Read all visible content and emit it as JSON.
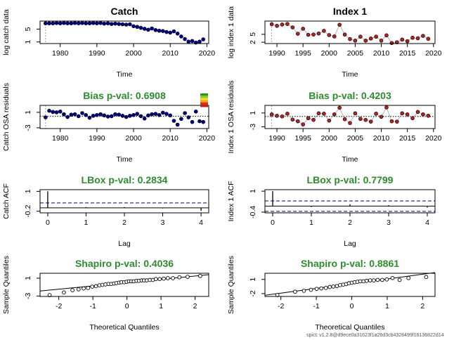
{
  "colors": {
    "catch_point": "#00008B",
    "index_point": "#B22222",
    "green_title": "#2E8B2E",
    "connect_line": "#b0b0b0",
    "ci_dash": "#00008B"
  },
  "footer": "spict: v1.2.8@d9ece0a31623f1a26d3cb4328499f16136822d14",
  "chart_data": [
    {
      "id": "catch_data",
      "type": "scatter",
      "title": "Catch",
      "title_color": "#000000",
      "xlabel": "Time",
      "ylabel": "log catch data",
      "xlim": [
        1974.5,
        2020.5
      ],
      "ylim": [
        0.5,
        7.5
      ],
      "xticks": [
        1980,
        1990,
        2000,
        2010,
        2020
      ],
      "yticks": [
        1,
        5
      ],
      "vline": 1976,
      "connect": false,
      "point_color": "#00008B",
      "x": [
        1976,
        1977,
        1978,
        1979,
        1980,
        1981,
        1982,
        1983,
        1984,
        1985,
        1986,
        1987,
        1988,
        1989,
        1990,
        1991,
        1992,
        1993,
        1994,
        1995,
        1996,
        1997,
        1998,
        1999,
        2000,
        2001,
        2002,
        2003,
        2004,
        2005,
        2006,
        2007,
        2008,
        2009,
        2010,
        2011,
        2012,
        2013,
        2014,
        2015,
        2016,
        2017,
        2018,
        2019
      ],
      "y": [
        6.8,
        6.8,
        6.8,
        6.9,
        6.8,
        6.9,
        6.8,
        6.8,
        6.9,
        6.8,
        6.9,
        6.8,
        6.8,
        6.9,
        6.8,
        6.9,
        6.7,
        6.8,
        6.6,
        6.7,
        6.6,
        6.5,
        6.4,
        6.5,
        5.9,
        5.7,
        5.4,
        5.1,
        4.8,
        5.2,
        4.7,
        4.5,
        4.4,
        4.1,
        3.9,
        4.3,
        3.6,
        2.7,
        1.9,
        1.1,
        1.3,
        0.8,
        1.1,
        1.8
      ]
    },
    {
      "id": "index_data",
      "type": "scatter",
      "title": "Index 1",
      "title_color": "#000000",
      "xlabel": "Time",
      "ylabel": "log index 1 data",
      "xlim": [
        1987.7,
        2020.3
      ],
      "ylim": [
        1.5,
        10
      ],
      "xticks": [
        1990,
        1995,
        2000,
        2005,
        2010,
        2015,
        2020
      ],
      "yticks": [
        2,
        5
      ],
      "vline": 1989,
      "connect": true,
      "point_color": "#B22222",
      "x": [
        1989,
        1990,
        1991,
        1992,
        1993,
        1994,
        1995,
        1996,
        1997,
        1998,
        1999,
        2000,
        2001,
        2002,
        2003,
        2004,
        2005,
        2006,
        2007,
        2008,
        2009,
        2010,
        2011,
        2012,
        2013,
        2014,
        2015,
        2016,
        2017,
        2018,
        2019
      ],
      "y": [
        8.8,
        8.2,
        8.7,
        8.9,
        7.6,
        5.2,
        7.1,
        4.8,
        4.9,
        5.3,
        6.3,
        4.7,
        4.2,
        8.6,
        4.9,
        3.2,
        2.6,
        4.1,
        2.6,
        3.4,
        4.1,
        2.6,
        4.6,
        1.7,
        2.0,
        3.0,
        2.4,
        3.7,
        3.5,
        4.4,
        3.3
      ]
    },
    {
      "id": "catch_osa",
      "type": "scatter",
      "title": "Bias p-val: 0.6908",
      "title_color": "#2E8B2E",
      "xlabel": "Time",
      "ylabel": "Catch OSA residuals",
      "xlim": [
        1974.5,
        2020.5
      ],
      "ylim": [
        -3.2,
        2.8
      ],
      "xticks": [
        1980,
        1990,
        2000,
        2010,
        2020
      ],
      "yticks": [
        -3,
        1
      ],
      "vline": 1976,
      "hline": 0,
      "connect": false,
      "point_color": "#00008B",
      "colorbar": true,
      "x": [
        1976,
        1977,
        1978,
        1979,
        1980,
        1981,
        1982,
        1983,
        1984,
        1985,
        1986,
        1987,
        1988,
        1989,
        1990,
        1991,
        1992,
        1993,
        1994,
        1995,
        1996,
        1997,
        1998,
        1999,
        2000,
        2001,
        2002,
        2003,
        2004,
        2005,
        2006,
        2007,
        2008,
        2009,
        2010,
        2011,
        2012,
        2013,
        2014,
        2015,
        2016,
        2017,
        2018,
        2019
      ],
      "y": [
        -0.3,
        1.4,
        1.1,
        1.0,
        1.2,
        0.5,
        -0.2,
        0.4,
        0.5,
        0.0,
        0.8,
        0.3,
        -0.4,
        0.1,
        0.3,
        0.5,
        0.2,
        -0.1,
        0.0,
        0.5,
        0.4,
        0.1,
        -0.2,
        0.1,
        0.3,
        0.6,
        0.0,
        -0.6,
        0.2,
        0.5,
        0.6,
        0.3,
        0.9,
        0.6,
        0.2,
        -1.2,
        -2.2,
        -0.7,
        0.8,
        -0.3,
        -1.5,
        1.2,
        -1.3,
        -1.5
      ]
    },
    {
      "id": "index_osa",
      "type": "scatter",
      "title": "Bias p-val: 0.4203",
      "title_color": "#2E8B2E",
      "xlabel": "Time",
      "ylabel": "Index 1 OSA residuals",
      "xlim": [
        1987.7,
        2020.3
      ],
      "ylim": [
        -3.5,
        3.2
      ],
      "xticks": [
        1990,
        1995,
        2000,
        2005,
        2010,
        2015,
        2020
      ],
      "yticks": [
        -3,
        1
      ],
      "vline": 1989,
      "hline": 0,
      "connect": true,
      "point_color": "#B22222",
      "x": [
        1989,
        1990,
        1991,
        1992,
        1993,
        1994,
        1995,
        1996,
        1997,
        1998,
        1999,
        2000,
        2001,
        2002,
        2003,
        2004,
        2005,
        2006,
        2007,
        2008,
        2009,
        2010,
        2011,
        2012,
        2013,
        2014,
        2015,
        2016,
        2017,
        2018,
        2019
      ],
      "y": [
        0.6,
        0.2,
        0.0,
        0.8,
        -0.9,
        -1.4,
        -2.3,
        -0.5,
        -1.0,
        0.9,
        0.8,
        -1.2,
        0.6,
        2.5,
        -0.8,
        -1.9,
        0.9,
        -0.7,
        -1.0,
        -1.5,
        0.8,
        -0.1,
        2.6,
        -1.4,
        -1.5,
        0.9,
        0.6,
        -0.5,
        1.3,
        0.6,
        0.2
      ]
    },
    {
      "id": "catch_acf",
      "type": "bar",
      "title": "LBox p-val: 0.2834",
      "title_color": "#2E8B2E",
      "xlabel": "Lag",
      "ylabel": "Catch ACF",
      "xlim": [
        -0.2,
        4.2
      ],
      "ylim": [
        -0.3,
        1.1
      ],
      "xticks": [
        0,
        1,
        2,
        3,
        4
      ],
      "yticks": [
        -0.2,
        1.0
      ],
      "x": [
        0,
        1,
        2,
        3,
        4
      ],
      "y": [
        1.0,
        0.05,
        0.05,
        -0.03,
        -0.18
      ],
      "ci": [
        0.3,
        -0.3
      ]
    },
    {
      "id": "index_acf",
      "type": "bar",
      "title": "LBox p-val: 0.7799",
      "title_color": "#2E8B2E",
      "xlabel": "Lag",
      "ylabel": "Index 1 ACF",
      "xlim": [
        -0.2,
        4.2
      ],
      "ylim": [
        -0.45,
        1.1
      ],
      "xticks": [
        0,
        1,
        2,
        3,
        4
      ],
      "yticks": [
        -0.4,
        1.0
      ],
      "x": [
        0,
        1,
        2,
        3,
        4
      ],
      "y": [
        1.0,
        -0.06,
        0.13,
        0.06,
        -0.1
      ],
      "ci": [
        0.35,
        -0.35
      ]
    },
    {
      "id": "catch_qq",
      "type": "scatter",
      "title": "Shapiro p-val: 0.4036",
      "title_color": "#2E8B2E",
      "xlabel": "Theoretical Quantiles",
      "ylabel": "Sample Quantiles",
      "xlim": [
        -2.55,
        2.4
      ],
      "ylim": [
        -3.1,
        2.1
      ],
      "xticks": [
        -2,
        -1,
        0,
        1,
        2
      ],
      "yticks": [
        -3,
        1
      ],
      "hollow": true,
      "qqline": [
        0,
        0.74
      ],
      "x": [
        -2.27,
        -1.85,
        -1.6,
        -1.42,
        -1.27,
        -1.14,
        -1.02,
        -0.91,
        -0.81,
        -0.72,
        -0.63,
        -0.54,
        -0.46,
        -0.38,
        -0.31,
        -0.23,
        -0.16,
        -0.08,
        -0.01,
        0.06,
        0.13,
        0.2,
        0.28,
        0.35,
        0.43,
        0.5,
        0.58,
        0.67,
        0.76,
        0.85,
        0.96,
        1.08,
        1.2,
        1.35,
        1.54,
        1.78,
        2.15
      ],
      "y": [
        -2.8,
        -2.2,
        -1.7,
        -1.5,
        -1.3,
        -1.2,
        -0.9,
        -0.8,
        -0.6,
        -0.5,
        -0.4,
        -0.3,
        -0.3,
        -0.2,
        -0.1,
        0.0,
        0.1,
        0.1,
        0.2,
        0.3,
        0.3,
        0.3,
        0.4,
        0.4,
        0.5,
        0.5,
        0.5,
        0.6,
        0.6,
        0.8,
        0.8,
        0.9,
        1.0,
        1.0,
        1.2,
        1.3,
        1.5
      ]
    },
    {
      "id": "index_qq",
      "type": "scatter",
      "title": "Shapiro p-val: 0.8861",
      "title_color": "#2E8B2E",
      "xlabel": "Theoretical Quantiles",
      "ylabel": "Sample Quantiles",
      "xlim": [
        -2.45,
        2.35
      ],
      "ylim": [
        -2.6,
        2.3
      ],
      "xticks": [
        -2,
        -1,
        0,
        1,
        2
      ],
      "yticks": [
        -2,
        1
      ],
      "hollow": true,
      "qqline": [
        0.1,
        1.0
      ],
      "x": [
        -2.1,
        -1.6,
        -1.35,
        -1.15,
        -0.99,
        -0.86,
        -0.73,
        -0.62,
        -0.52,
        -0.42,
        -0.33,
        -0.24,
        -0.16,
        -0.08,
        0.0,
        0.08,
        0.16,
        0.24,
        0.33,
        0.42,
        0.52,
        0.62,
        0.73,
        0.86,
        0.99,
        1.15,
        1.35,
        1.6,
        2.1
      ],
      "y": [
        -2.3,
        -1.6,
        -1.4,
        -1.2,
        -1.0,
        -0.9,
        -0.8,
        -0.6,
        -0.5,
        -0.4,
        -0.2,
        -0.1,
        0.0,
        0.2,
        0.3,
        0.4,
        0.5,
        0.6,
        0.6,
        0.7,
        0.8,
        0.8,
        0.9,
        0.9,
        1.0,
        1.3,
        0.9,
        1.3,
        1.5
      ]
    }
  ]
}
